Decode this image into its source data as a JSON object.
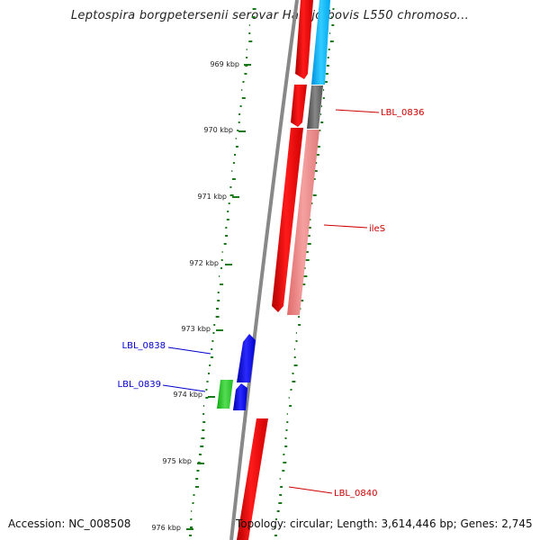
{
  "title": "Leptospira borgpetersenii serovar Hardjo-bovis L550 chromoso...",
  "footer": {
    "accession": "Accession: NC_008508",
    "summary": "Topology: circular; Length: 3,614,446 bp; Genes: 2,745"
  },
  "ticks": [
    {
      "label": "969 kbp"
    },
    {
      "label": "970 kbp"
    },
    {
      "label": "971 kbp"
    },
    {
      "label": "972 kbp"
    },
    {
      "label": "973 kbp"
    },
    {
      "label": "974 kbp"
    },
    {
      "label": "975 kbp"
    },
    {
      "label": "976 kbp"
    }
  ],
  "genes": [
    {
      "name": "LBL_0836",
      "color": "#cc0000"
    },
    {
      "name": "ileS",
      "color": "#cc0000"
    },
    {
      "name": "LBL_0838",
      "color": "#0000cc"
    },
    {
      "name": "LBL_0839",
      "color": "#0000cc"
    },
    {
      "name": "LBL_0840",
      "color": "#cc0000"
    }
  ],
  "colors": {
    "forward_feature": "#ff0000",
    "forward_feature_light": "#f08a8a",
    "reverse_feature": "#0000ff",
    "rna_feature": "#22bb22",
    "cyan_feature": "#00b8ff",
    "gray_feature": "#666666",
    "backbone": "#888888",
    "gc_dots": "#1a7a1a"
  }
}
